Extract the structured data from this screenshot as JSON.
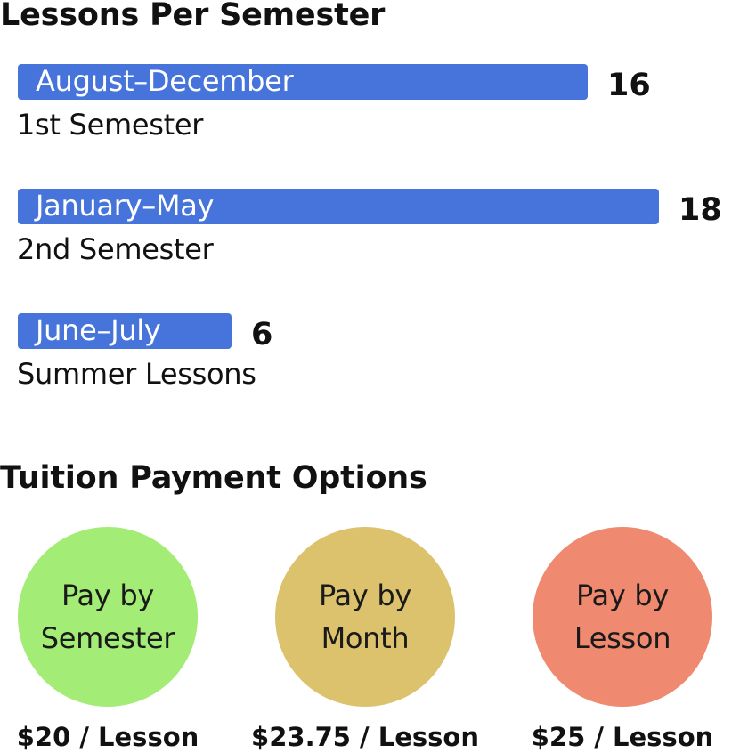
{
  "lessons_section": {
    "title": "Lessons Per Semester"
  },
  "tuition_section": {
    "title": "Tuition Payment Options"
  },
  "chart_data": {
    "type": "bar",
    "orientation": "horizontal",
    "title": "Lessons Per Semester",
    "categories": [
      "1st Semester",
      "2nd Semester",
      "Summer Lessons"
    ],
    "bar_labels": [
      "August–December",
      "January–May",
      "June–July"
    ],
    "values": [
      16,
      18,
      6
    ],
    "value_labels": [
      "16",
      "18",
      "6"
    ],
    "bar_color": "#4674DB",
    "grid": false
  },
  "payment_options": [
    {
      "line1": "Pay by",
      "line2": "Semester",
      "price": "$20 / Lesson",
      "color": "#A3EC75"
    },
    {
      "line1": "Pay by",
      "line2": "Month",
      "price": "$23.75 / Lesson",
      "color": "#DDC26D"
    },
    {
      "line1": "Pay by",
      "line2": "Lesson",
      "price": "$25 / Lesson",
      "color": "#EF8A70"
    }
  ]
}
